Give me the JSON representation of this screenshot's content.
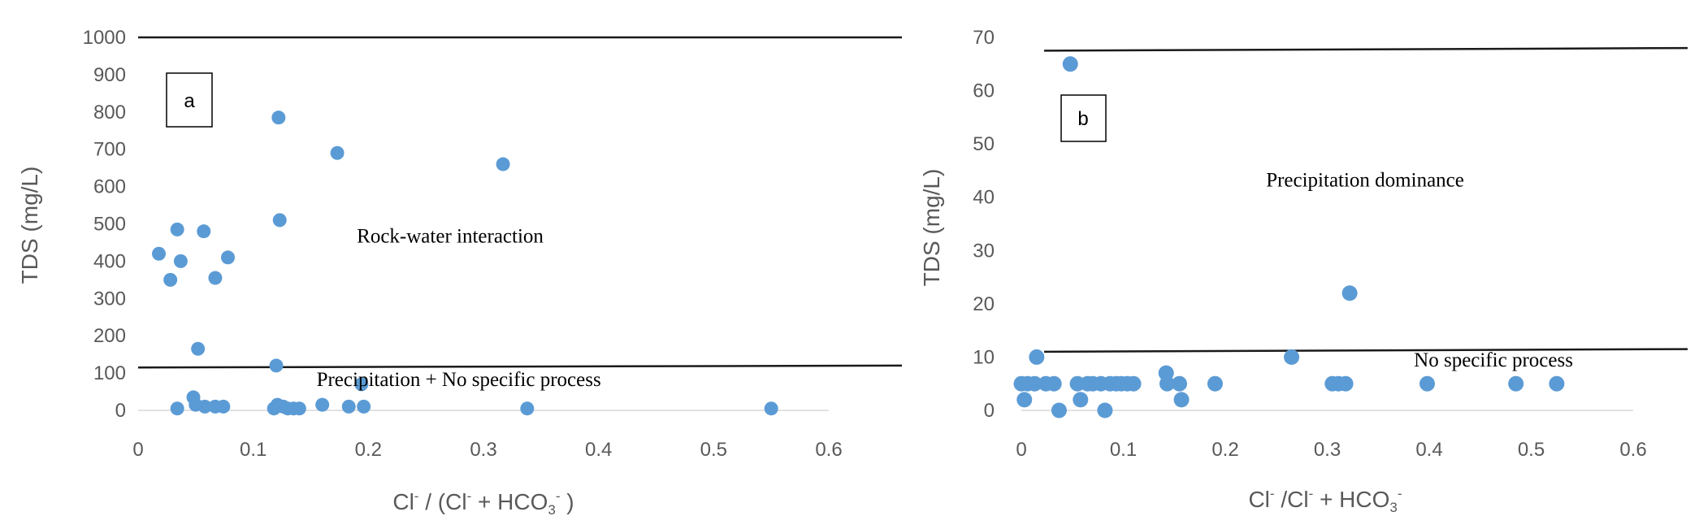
{
  "colors": {
    "marker": "#5b9bd5",
    "threshold_line": "#1a1a1a",
    "axis_text": "#595959"
  },
  "chart_data": [
    {
      "type": "scatter",
      "panel_label": "a",
      "xlabel": {
        "pre": "Cl",
        "sup1": "-",
        "mid": " / (Cl",
        "sup2": "-",
        "post1": " + HCO",
        "sub": "3",
        "sup3": "-",
        "post2": " )"
      },
      "ylabel": "TDS (mg/L)",
      "xlim": [
        0,
        0.6
      ],
      "ylim": [
        0,
        1000
      ],
      "x_ticks": [
        "0",
        "0.1",
        "0.2",
        "0.3",
        "0.4",
        "0.5",
        "0.6"
      ],
      "x_tick_values": [
        0,
        0.1,
        0.2,
        0.3,
        0.4,
        0.5,
        0.6
      ],
      "y_ticks": [
        "0",
        "100",
        "200",
        "300",
        "400",
        "500",
        "600",
        "700",
        "800",
        "900",
        "1000"
      ],
      "y_tick_values": [
        0,
        100,
        200,
        300,
        400,
        500,
        600,
        700,
        800,
        900,
        1000
      ],
      "threshold_lines": [
        {
          "y_start": 1000,
          "y_end": 1000
        },
        {
          "y_start": 115,
          "y_end": 120
        }
      ],
      "annotations": [
        {
          "text": "Rock-water interaction",
          "x": 0.19,
          "y": 450
        },
        {
          "text": "Precipitation + No specific process",
          "x": 0.155,
          "y": 65
        }
      ],
      "points": [
        [
          0.018,
          420
        ],
        [
          0.028,
          350
        ],
        [
          0.034,
          485
        ],
        [
          0.037,
          400
        ],
        [
          0.052,
          165
        ],
        [
          0.057,
          480
        ],
        [
          0.067,
          355
        ],
        [
          0.078,
          410
        ],
        [
          0.034,
          5
        ],
        [
          0.048,
          35
        ],
        [
          0.05,
          15
        ],
        [
          0.058,
          10
        ],
        [
          0.067,
          10
        ],
        [
          0.074,
          10
        ],
        [
          0.12,
          120
        ],
        [
          0.122,
          785
        ],
        [
          0.123,
          510
        ],
        [
          0.118,
          5
        ],
        [
          0.121,
          15
        ],
        [
          0.126,
          10
        ],
        [
          0.13,
          5
        ],
        [
          0.135,
          5
        ],
        [
          0.14,
          5
        ],
        [
          0.16,
          15
        ],
        [
          0.173,
          690
        ],
        [
          0.183,
          10
        ],
        [
          0.194,
          70
        ],
        [
          0.196,
          10
        ],
        [
          0.317,
          660
        ],
        [
          0.338,
          5
        ],
        [
          0.55,
          5
        ]
      ]
    },
    {
      "type": "scatter",
      "panel_label": "b",
      "xlabel": {
        "pre": "Cl",
        "sup1": "-",
        "mid": " /Cl",
        "sup2": "-",
        "post1": " + HCO",
        "sub": "3",
        "sup3": "-",
        "post2": ""
      },
      "ylabel": "TDS (mg/L)",
      "xlim": [
        0,
        0.6
      ],
      "ylim": [
        0,
        70
      ],
      "x_ticks": [
        "0",
        "0.1",
        "0.2",
        "0.3",
        "0.4",
        "0.5",
        "0.6"
      ],
      "x_tick_values": [
        0,
        0.1,
        0.2,
        0.3,
        0.4,
        0.5,
        0.6
      ],
      "y_ticks": [
        "0",
        "10",
        "20",
        "30",
        "40",
        "50",
        "60",
        "70"
      ],
      "y_tick_values": [
        0,
        10,
        20,
        30,
        40,
        50,
        60,
        70
      ],
      "threshold_lines": [
        {
          "y_start": 67.5,
          "y_end": 68
        },
        {
          "y_start": 11,
          "y_end": 11.5
        }
      ],
      "annotations": [
        {
          "text": "Precipitation dominance",
          "x": 0.24,
          "y": 42
        },
        {
          "text": "No specific process",
          "x": 0.385,
          "y": 8.2
        }
      ],
      "points": [
        [
          0.0,
          5
        ],
        [
          0.003,
          2
        ],
        [
          0.006,
          5
        ],
        [
          0.013,
          5
        ],
        [
          0.015,
          10
        ],
        [
          0.024,
          5
        ],
        [
          0.032,
          5
        ],
        [
          0.037,
          0
        ],
        [
          0.048,
          65
        ],
        [
          0.055,
          5
        ],
        [
          0.058,
          2
        ],
        [
          0.065,
          5
        ],
        [
          0.07,
          5
        ],
        [
          0.078,
          5
        ],
        [
          0.082,
          0
        ],
        [
          0.087,
          5
        ],
        [
          0.093,
          5
        ],
        [
          0.098,
          5
        ],
        [
          0.104,
          5
        ],
        [
          0.11,
          5
        ],
        [
          0.142,
          7
        ],
        [
          0.143,
          5
        ],
        [
          0.155,
          5
        ],
        [
          0.157,
          2
        ],
        [
          0.19,
          5
        ],
        [
          0.265,
          10
        ],
        [
          0.305,
          5
        ],
        [
          0.311,
          5
        ],
        [
          0.318,
          5
        ],
        [
          0.322,
          22
        ],
        [
          0.398,
          5
        ],
        [
          0.485,
          5
        ],
        [
          0.525,
          5
        ]
      ]
    }
  ]
}
